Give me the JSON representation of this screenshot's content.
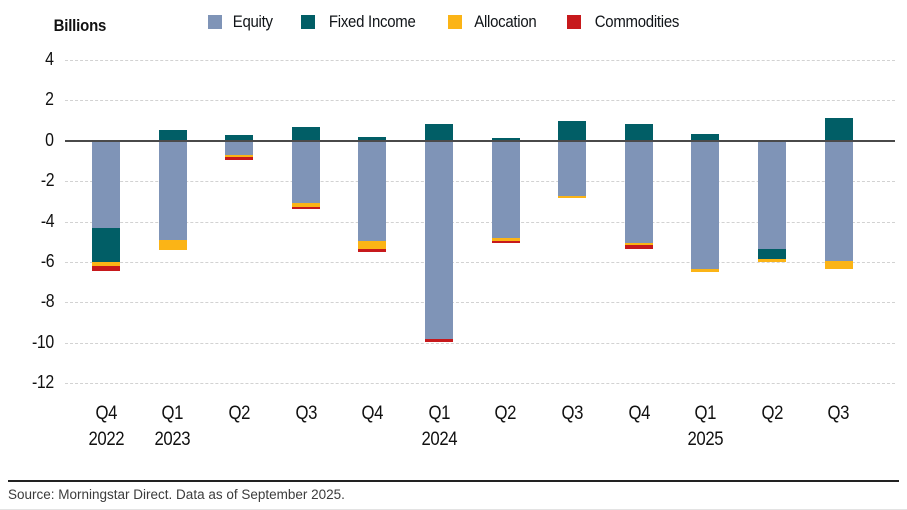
{
  "source": "Source: Morningstar Direct. Data as of September 2025.",
  "chart_data": {
    "type": "bar",
    "stacked": true,
    "unit_label": "Billions",
    "ylabel": "Billions",
    "xlabel": "",
    "ylim": [
      -12,
      4
    ],
    "yticks": [
      4,
      2,
      0,
      -2,
      -4,
      -6,
      -8,
      -10,
      -12
    ],
    "grid": "horizontal-dashed",
    "legend_position": "top",
    "categories": [
      "Q4 2022",
      "Q1 2023",
      "Q2 2023",
      "Q3 2023",
      "Q4 2023",
      "Q1 2024",
      "Q2 2024",
      "Q3 2024",
      "Q4 2024",
      "Q1 2025",
      "Q2 2025",
      "Q3 2025"
    ],
    "x_tick_lines": [
      {
        "quarter": "Q4",
        "year": "2022"
      },
      {
        "quarter": "Q1",
        "year": "2023"
      },
      {
        "quarter": "Q2",
        "year": ""
      },
      {
        "quarter": "Q3",
        "year": ""
      },
      {
        "quarter": "Q4",
        "year": ""
      },
      {
        "quarter": "Q1",
        "year": "2024"
      },
      {
        "quarter": "Q2",
        "year": ""
      },
      {
        "quarter": "Q3",
        "year": ""
      },
      {
        "quarter": "Q4",
        "year": ""
      },
      {
        "quarter": "Q1",
        "year": "2025"
      },
      {
        "quarter": "Q2",
        "year": ""
      },
      {
        "quarter": "Q3",
        "year": ""
      }
    ],
    "series": [
      {
        "name": "Equity",
        "color": "#7f94b7",
        "values": [
          -4.3,
          -4.9,
          -0.7,
          -3.1,
          -4.95,
          -9.8,
          -4.8,
          -2.75,
          -5.05,
          -6.35,
          -5.35,
          -5.95
        ]
      },
      {
        "name": "Fixed Income",
        "color": "#015e66",
        "values": [
          -1.7,
          0.55,
          0.3,
          0.7,
          0.2,
          0.85,
          0.15,
          1.0,
          0.85,
          0.35,
          -0.5,
          1.15
        ]
      },
      {
        "name": "Allocation",
        "color": "#fbb416",
        "values": [
          -0.2,
          -0.5,
          -0.1,
          -0.2,
          -0.4,
          0,
          -0.15,
          -0.1,
          -0.1,
          -0.15,
          -0.15,
          -0.4
        ]
      },
      {
        "name": "Commodities",
        "color": "#c7191c",
        "values": [
          -0.25,
          0,
          -0.15,
          -0.1,
          -0.15,
          -0.15,
          -0.1,
          0,
          -0.2,
          0,
          0,
          0
        ]
      }
    ]
  }
}
